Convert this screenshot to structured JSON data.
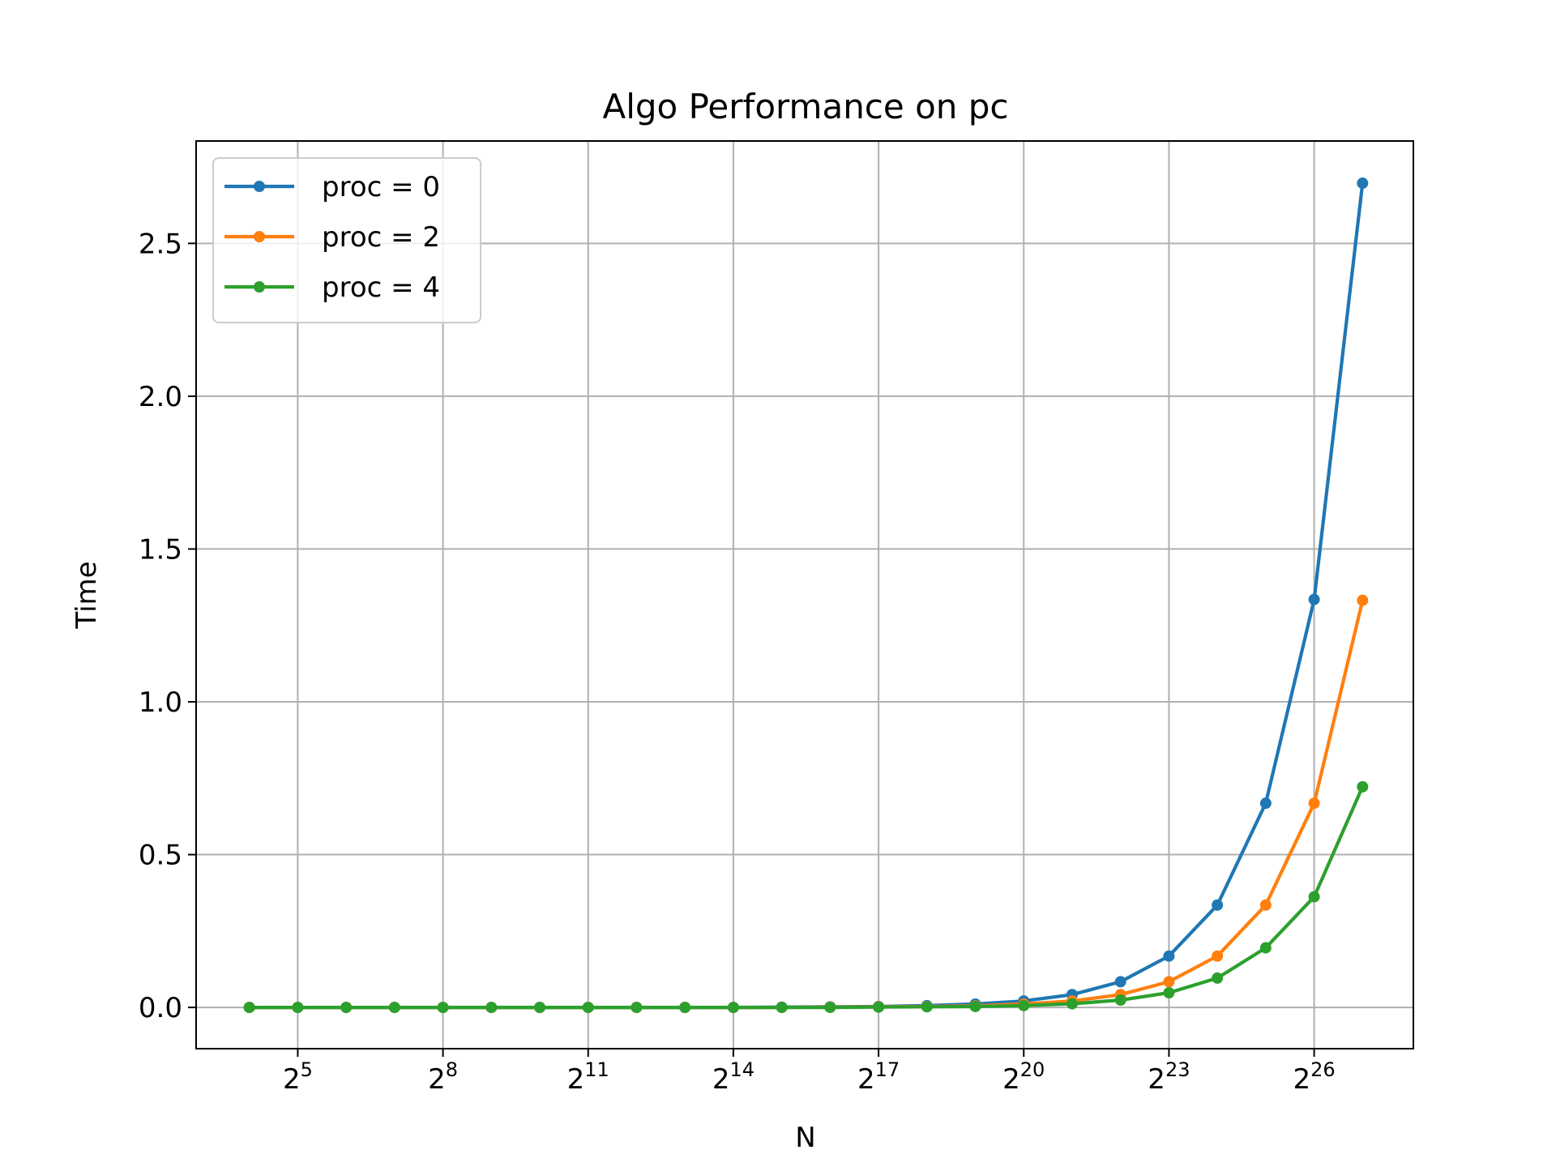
{
  "chart_data": {
    "type": "line",
    "title": "Algo Performance on pc",
    "xlabel": "N",
    "ylabel": "Time",
    "x_scale": "log2",
    "x_exponents": [
      4,
      5,
      6,
      7,
      8,
      9,
      10,
      11,
      12,
      13,
      14,
      15,
      16,
      17,
      18,
      19,
      20,
      21,
      22,
      23,
      24,
      25,
      26,
      27
    ],
    "xlim_exponent": [
      2.9,
      28.05
    ],
    "ylim": [
      -0.135,
      2.835
    ],
    "x_ticks": [
      {
        "base": "2",
        "exp": "5",
        "value": 5
      },
      {
        "base": "2",
        "exp": "8",
        "value": 8
      },
      {
        "base": "2",
        "exp": "11",
        "value": 11
      },
      {
        "base": "2",
        "exp": "14",
        "value": 14
      },
      {
        "base": "2",
        "exp": "17",
        "value": 17
      },
      {
        "base": "2",
        "exp": "20",
        "value": 20
      },
      {
        "base": "2",
        "exp": "23",
        "value": 23
      },
      {
        "base": "2",
        "exp": "26",
        "value": 26
      }
    ],
    "y_ticks": [
      {
        "label": "0.0",
        "value": 0.0
      },
      {
        "label": "0.5",
        "value": 0.5
      },
      {
        "label": "1.0",
        "value": 1.0
      },
      {
        "label": "1.5",
        "value": 1.5
      },
      {
        "label": "2.0",
        "value": 2.0
      },
      {
        "label": "2.5",
        "value": 2.5
      }
    ],
    "grid": true,
    "legend_position": "top-left",
    "series": [
      {
        "name": "proc = 0",
        "color": "#1f77b4",
        "values": [
          0.0,
          0.0,
          0.0,
          0.0,
          0.0,
          0.0,
          0.0,
          0.0,
          0.0,
          0.0,
          0.0,
          0.001,
          0.002,
          0.003,
          0.006,
          0.011,
          0.021,
          0.042,
          0.084,
          0.168,
          0.335,
          0.668,
          1.335,
          2.697
        ]
      },
      {
        "name": "proc = 2",
        "color": "#ff7f0e",
        "values": [
          0.0,
          0.0,
          0.0,
          0.0,
          0.0,
          0.0,
          0.0,
          0.0,
          0.0,
          0.0,
          0.0,
          0.0,
          0.001,
          0.002,
          0.003,
          0.005,
          0.011,
          0.021,
          0.042,
          0.084,
          0.168,
          0.335,
          0.668,
          1.332
        ]
      },
      {
        "name": "proc = 4",
        "color": "#2ca02c",
        "values": [
          0.0,
          0.0,
          0.0,
          0.0,
          0.0,
          0.0,
          0.0,
          0.0,
          0.0,
          0.0,
          0.0,
          0.0,
          0.0,
          0.001,
          0.002,
          0.003,
          0.006,
          0.012,
          0.024,
          0.048,
          0.096,
          0.195,
          0.362,
          0.722
        ]
      }
    ]
  }
}
